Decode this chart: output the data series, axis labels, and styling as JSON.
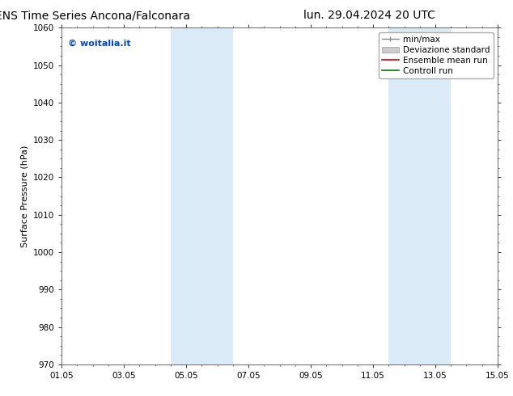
{
  "title_left": "ENS Time Series Ancona/Falconara",
  "title_right": "lun. 29.04.2024 20 UTC",
  "ylabel": "Surface Pressure (hPa)",
  "ylim": [
    970,
    1060
  ],
  "yticks": [
    970,
    980,
    990,
    1000,
    1010,
    1020,
    1030,
    1040,
    1050,
    1060
  ],
  "xlim_start": 0,
  "xlim_end": 14,
  "xtick_labels": [
    "01.05",
    "03.05",
    "05.05",
    "07.05",
    "09.05",
    "11.05",
    "13.05",
    "15.05"
  ],
  "xtick_positions": [
    0,
    2,
    4,
    6,
    8,
    10,
    12,
    14
  ],
  "shaded_bands": [
    {
      "x_start": 3.5,
      "x_end": 5.5
    },
    {
      "x_start": 10.5,
      "x_end": 12.5
    }
  ],
  "watermark": "© woitalia.it",
  "watermark_color": "#0044cc",
  "legend_labels": [
    "min/max",
    "Deviazione standard",
    "Ensemble mean run",
    "Controll run"
  ],
  "legend_line_color": "#888888",
  "legend_red_color": "#dd0000",
  "legend_green_color": "#007700",
  "background_color": "#ffffff",
  "plot_bg_color": "#ffffff",
  "title_fontsize": 10,
  "axis_label_fontsize": 8,
  "tick_fontsize": 7.5,
  "legend_fontsize": 7.5,
  "inner_band_color": "#daeaf7",
  "inner_band_alpha": 1.0,
  "spine_color": "#666666",
  "tick_color": "#333333"
}
